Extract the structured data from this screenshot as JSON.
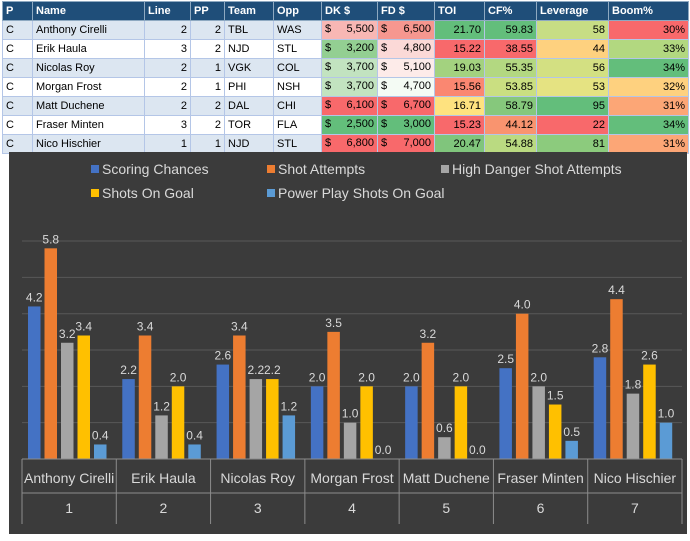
{
  "table": {
    "headers": [
      "P",
      "Name",
      "Line",
      "PP",
      "Team",
      "Opp",
      "DK $",
      "FD $",
      "TOI",
      "CF%",
      "Leverage",
      "Boom%"
    ],
    "currency_symbol": "$",
    "rows": [
      {
        "pos": "C",
        "name": "Anthony Cirelli",
        "line": "2",
        "pp": "2",
        "team": "TBL",
        "opp": "WAS",
        "dk": "5,500",
        "fd": "6,500",
        "toi": "21.70",
        "cf": "59.83",
        "leverage": "58",
        "boom": "30%",
        "dk_color": "#f8b7b4",
        "fd_color": "#f6978f",
        "toi_color": "#63be7b",
        "cf_color": "#63be7b",
        "lev_color": "#c7dd84",
        "boom_color": "#f8696b"
      },
      {
        "pos": "C",
        "name": "Erik Haula",
        "line": "3",
        "pp": "2",
        "team": "NJD",
        "opp": "STL",
        "dk": "3,200",
        "fd": "4,800",
        "toi": "15.22",
        "cf": "38.55",
        "leverage": "44",
        "boom": "33%",
        "dk_color": "#93cf92",
        "fd_color": "#fbd9d7",
        "toi_color": "#f8696b",
        "cf_color": "#f8696b",
        "lev_color": "#fed17f",
        "boom_color": "#b2d880"
      },
      {
        "pos": "C",
        "name": "Nicolas Roy",
        "line": "2",
        "pp": "1",
        "team": "VGK",
        "opp": "COL",
        "dk": "3,700",
        "fd": "5,100",
        "toi": "19.03",
        "cf": "55.35",
        "leverage": "56",
        "boom": "34%",
        "dk_color": "#c2e3c0",
        "fd_color": "#fdebe9",
        "toi_color": "#a3d27f",
        "cf_color": "#b3d881",
        "lev_color": "#d3e082",
        "boom_color": "#63be7b"
      },
      {
        "pos": "C",
        "name": "Morgan Frost",
        "line": "2",
        "pp": "1",
        "team": "PHI",
        "opp": "NSH",
        "dk": "3,700",
        "fd": "4,700",
        "toi": "15.56",
        "cf": "53.85",
        "leverage": "53",
        "boom": "32%",
        "dk_color": "#c2e3c0",
        "fd_color": "#f4fbf4",
        "toi_color": "#fa8771",
        "cf_color": "#cadf81",
        "lev_color": "#e5e382",
        "boom_color": "#fed17f"
      },
      {
        "pos": "C",
        "name": "Matt Duchene",
        "line": "2",
        "pp": "2",
        "team": "DAL",
        "opp": "CHI",
        "dk": "6,100",
        "fd": "6,700",
        "toi": "16.71",
        "cf": "58.79",
        "leverage": "95",
        "boom": "31%",
        "dk_color": "#f8696b",
        "fd_color": "#f8696b",
        "toi_color": "#fee27f",
        "cf_color": "#86c87c",
        "lev_color": "#63be7b",
        "boom_color": "#fca676"
      },
      {
        "pos": "C",
        "name": "Fraser Minten",
        "line": "3",
        "pp": "2",
        "team": "TOR",
        "opp": "FLA",
        "dk": "2,500",
        "fd": "3,000",
        "toi": "15.23",
        "cf": "44.12",
        "leverage": "22",
        "boom": "34%",
        "dk_color": "#63be7b",
        "fd_color": "#63be7b",
        "toi_color": "#f8696b",
        "cf_color": "#f9946f",
        "lev_color": "#f8696b",
        "boom_color": "#63be7b"
      },
      {
        "pos": "C",
        "name": "Nico Hischier",
        "line": "1",
        "pp": "1",
        "team": "NJD",
        "opp": "STL",
        "dk": "6,800",
        "fd": "7,000",
        "toi": "20.47",
        "cf": "54.88",
        "leverage": "81",
        "boom": "31%",
        "dk_color": "#f8696b",
        "fd_color": "#f8696b",
        "toi_color": "#80c57c",
        "cf_color": "#bada81",
        "lev_color": "#8ccb7d",
        "boom_color": "#fca676"
      }
    ]
  },
  "chart_data": {
    "type": "bar",
    "title": "",
    "xlabel": "",
    "ylabel": "",
    "ylim": [
      0,
      6.8
    ],
    "grid": true,
    "legend_position": "top",
    "categories": [
      {
        "name": "Anthony Cirelli",
        "num": "1"
      },
      {
        "name": "Erik Haula",
        "num": "2"
      },
      {
        "name": "Nicolas Roy",
        "num": "3"
      },
      {
        "name": "Morgan Frost",
        "num": "4"
      },
      {
        "name": "Matt Duchene",
        "num": "5"
      },
      {
        "name": "Fraser Minten",
        "num": "6"
      },
      {
        "name": "Nico Hischier",
        "num": "7"
      }
    ],
    "series": [
      {
        "name": "Scoring Chances",
        "color": "#4472c4",
        "values": [
          4.2,
          2.2,
          2.6,
          2.0,
          2.0,
          2.5,
          2.8
        ],
        "labels": [
          "4.2",
          "2.2",
          "2.6",
          "2.0",
          "2.0",
          "2.5",
          "2.8"
        ]
      },
      {
        "name": "Shot Attempts",
        "color": "#ed7d31",
        "values": [
          5.8,
          3.4,
          3.4,
          3.5,
          3.2,
          4.0,
          4.4
        ],
        "labels": [
          "5.8",
          "3.4",
          "3.4",
          "3.5",
          "3.2",
          "4.0",
          "4.4"
        ]
      },
      {
        "name": "High Danger Shot Attempts",
        "color": "#a5a5a5",
        "values": [
          3.2,
          1.2,
          2.2,
          1.0,
          0.6,
          2.0,
          1.8
        ],
        "labels": [
          "3.2",
          "1.2",
          "2.2",
          "1.0",
          "0.6",
          "2.0",
          "1.8"
        ]
      },
      {
        "name": "Shots On Goal",
        "color": "#ffc000",
        "values": [
          3.4,
          2.0,
          2.2,
          2.0,
          2.0,
          1.5,
          2.6
        ],
        "labels": [
          "3.4",
          "2.0",
          "2.2",
          "2.0",
          "2.0",
          "1.5",
          "2.6"
        ]
      },
      {
        "name": "Power Play Shots On Goal",
        "color": "#5b9bd5",
        "values": [
          0.4,
          0.4,
          1.2,
          0.0,
          0.0,
          0.5,
          1.0
        ],
        "labels": [
          "0.4",
          "0.4",
          "1.2",
          "0.0",
          "0.0",
          "0.5",
          "1.0"
        ]
      }
    ]
  }
}
